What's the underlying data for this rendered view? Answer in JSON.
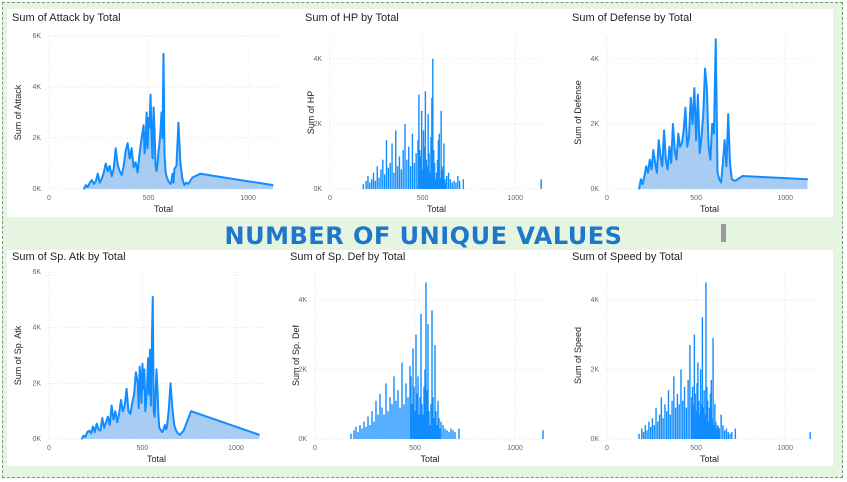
{
  "banner": "NUMBER OF UNIQUE VALUES",
  "colors": {
    "series": "#118dff",
    "area": "#a9cdf2",
    "grid": "#e3e3e3",
    "bg": "#e6f5e2"
  },
  "chart_data": [
    {
      "type": "area",
      "title": "Sum of Attack by Total",
      "xlabel": "Total",
      "ylabel": "Sum of Attack",
      "xlim": [
        0,
        1150
      ],
      "xticks": [
        0,
        500,
        1000
      ],
      "xtick_labels": [
        "0",
        "500",
        "1000"
      ],
      "ylim": [
        0,
        6000
      ],
      "yticks": [
        0,
        2000,
        4000,
        6000
      ],
      "ytick_labels": [
        "0K",
        "2K",
        "4K",
        "6K"
      ],
      "series": [
        {
          "x": [
            175,
            185,
            195,
            205,
            215,
            225,
            235,
            245,
            255,
            265,
            275,
            285,
            295,
            305,
            315,
            325,
            335,
            345,
            355,
            365,
            375,
            385,
            395,
            405,
            415,
            425,
            435,
            445,
            455,
            465,
            475,
            480,
            485,
            490,
            495,
            500,
            505,
            510,
            515,
            520,
            525,
            530,
            535,
            540,
            545,
            550,
            555,
            560,
            565,
            570,
            575,
            580,
            585,
            590,
            595,
            600,
            605,
            610,
            615,
            620,
            625,
            630,
            640,
            650,
            660,
            670,
            680,
            690,
            700,
            720,
            760,
            1125
          ],
          "y": [
            0,
            150,
            80,
            250,
            350,
            200,
            300,
            600,
            250,
            400,
            650,
            1000,
            700,
            900,
            500,
            800,
            1600,
            950,
            700,
            550,
            900,
            1500,
            1800,
            1200,
            1600,
            850,
            1050,
            650,
            1400,
            2000,
            2500,
            1400,
            1800,
            3000,
            1600,
            2800,
            2400,
            3700,
            2000,
            1200,
            3200,
            2300,
            900,
            700,
            1000,
            1500,
            1800,
            2300,
            3000,
            2000,
            5300,
            1400,
            700,
            500,
            400,
            300,
            250,
            200,
            300,
            600,
            250,
            800,
            900,
            2600,
            1000,
            400,
            150,
            250,
            200,
            450,
            600,
            150
          ]
        }
      ]
    },
    {
      "type": "bar",
      "title": "Sum of HP by Total",
      "xlabel": "Total",
      "ylabel": "Sum of HP",
      "xlim": [
        0,
        1150
      ],
      "xticks": [
        0,
        500,
        1000
      ],
      "xtick_labels": [
        "0",
        "500",
        "1000"
      ],
      "ylim": [
        0,
        4700
      ],
      "yticks": [
        0,
        2000,
        4000
      ],
      "ytick_labels": [
        "0K",
        "2K",
        "4K"
      ],
      "series": [
        {
          "x": [
            180,
            195,
            205,
            215,
            225,
            235,
            245,
            255,
            265,
            275,
            285,
            295,
            305,
            315,
            325,
            335,
            345,
            355,
            365,
            375,
            385,
            395,
            405,
            415,
            425,
            435,
            445,
            455,
            465,
            475,
            480,
            485,
            490,
            495,
            500,
            505,
            510,
            515,
            520,
            525,
            530,
            535,
            540,
            545,
            550,
            555,
            560,
            565,
            570,
            575,
            580,
            585,
            590,
            595,
            600,
            605,
            610,
            615,
            620,
            625,
            630,
            640,
            650,
            660,
            670,
            680,
            690,
            700,
            720,
            1140
          ],
          "y": [
            150,
            250,
            400,
            200,
            300,
            500,
            250,
            700,
            350,
            600,
            900,
            450,
            1500,
            650,
            800,
            1400,
            500,
            1800,
            700,
            1000,
            600,
            1200,
            2000,
            900,
            1300,
            700,
            1700,
            800,
            1100,
            1500,
            2900,
            1200,
            1000,
            2400,
            600,
            1800,
            1300,
            3000,
            900,
            700,
            2300,
            1100,
            500,
            1600,
            2800,
            4000,
            1200,
            800,
            300,
            500,
            900,
            1500,
            1700,
            350,
            2400,
            600,
            700,
            1400,
            300,
            200,
            400,
            500,
            300,
            200,
            250,
            200,
            400,
            250,
            300,
            300
          ]
        }
      ]
    },
    {
      "type": "area",
      "title": "Sum of Defense by Total",
      "xlabel": "Total",
      "ylabel": "Sum of Defense",
      "xlim": [
        0,
        1150
      ],
      "xticks": [
        0,
        500,
        1000
      ],
      "xtick_labels": [
        "0",
        "500",
        "1000"
      ],
      "ylim": [
        0,
        4700
      ],
      "yticks": [
        0,
        2000,
        4000
      ],
      "ytick_labels": [
        "0K",
        "2K",
        "4K"
      ],
      "series": [
        {
          "x": [
            180,
            190,
            200,
            210,
            220,
            230,
            240,
            250,
            260,
            270,
            280,
            290,
            300,
            310,
            320,
            330,
            340,
            350,
            360,
            370,
            380,
            390,
            400,
            410,
            420,
            430,
            440,
            450,
            460,
            470,
            480,
            490,
            500,
            510,
            520,
            530,
            540,
            550,
            560,
            570,
            580,
            590,
            600,
            610,
            620,
            630,
            640,
            650,
            660,
            670,
            680,
            690,
            700,
            720,
            760,
            1125
          ],
          "y": [
            0,
            300,
            150,
            400,
            700,
            500,
            900,
            600,
            1200,
            800,
            500,
            1500,
            1000,
            700,
            1800,
            900,
            600,
            1300,
            800,
            2000,
            1200,
            900,
            1700,
            1300,
            1400,
            1800,
            2500,
            1300,
            1600,
            2800,
            2000,
            3100,
            1500,
            2900,
            1100,
            1600,
            2300,
            3700,
            3100,
            1300,
            900,
            2000,
            1700,
            4600,
            500,
            300,
            200,
            800,
            1500,
            700,
            2300,
            800,
            300,
            250,
            400,
            300
          ]
        }
      ]
    },
    {
      "type": "area",
      "title": "Sum of Sp. Atk by Total",
      "xlabel": "Total",
      "ylabel": "Sum of Sp. Atk",
      "xlim": [
        0,
        1150
      ],
      "xticks": [
        0,
        500,
        1000
      ],
      "xtick_labels": [
        "0",
        "500",
        "1000"
      ],
      "ylim": [
        0,
        6000
      ],
      "yticks": [
        0,
        2000,
        4000,
        6000
      ],
      "ytick_labels": [
        "0K",
        "2K",
        "4K",
        "6K"
      ],
      "series": [
        {
          "x": [
            175,
            185,
            195,
            205,
            215,
            225,
            235,
            245,
            255,
            265,
            275,
            285,
            295,
            305,
            315,
            325,
            335,
            345,
            355,
            365,
            375,
            385,
            395,
            405,
            415,
            425,
            435,
            445,
            455,
            465,
            475,
            480,
            485,
            490,
            495,
            500,
            505,
            510,
            515,
            520,
            525,
            530,
            535,
            540,
            545,
            550,
            555,
            560,
            565,
            570,
            575,
            580,
            585,
            590,
            595,
            600,
            605,
            610,
            615,
            620,
            625,
            630,
            640,
            650,
            660,
            670,
            680,
            690,
            700,
            720,
            760,
            1125
          ],
          "y": [
            0,
            120,
            80,
            250,
            300,
            200,
            450,
            250,
            550,
            350,
            300,
            750,
            400,
            600,
            800,
            500,
            1200,
            700,
            1000,
            600,
            900,
            1400,
            1000,
            1200,
            1800,
            1000,
            900,
            1300,
            1600,
            2400,
            2000,
            1100,
            2600,
            2200,
            1300,
            2700,
            1800,
            2500,
            1000,
            1400,
            2000,
            2900,
            1600,
            3200,
            1200,
            3400,
            5100,
            1000,
            800,
            1600,
            2500,
            1800,
            900,
            400,
            350,
            300,
            250,
            300,
            400,
            500,
            350,
            400,
            1000,
            2000,
            1100,
            500,
            300,
            200,
            150,
            300,
            1000,
            150
          ]
        }
      ]
    },
    {
      "type": "bar",
      "title": "Sum of Sp. Def by Total",
      "xlabel": "Total",
      "ylabel": "Sum of Sp. Def",
      "xlim": [
        0,
        1150
      ],
      "xticks": [
        0,
        500,
        1000
      ],
      "xtick_labels": [
        "0",
        "500",
        "1000"
      ],
      "ylim": [
        0,
        4800
      ],
      "yticks": [
        0,
        2000,
        4000
      ],
      "ytick_labels": [
        "0K",
        "2K",
        "4K"
      ],
      "series": [
        {
          "x": [
            180,
            195,
            205,
            215,
            225,
            235,
            245,
            255,
            265,
            275,
            285,
            295,
            305,
            315,
            325,
            335,
            345,
            355,
            365,
            375,
            385,
            395,
            405,
            415,
            425,
            435,
            445,
            455,
            465,
            475,
            480,
            485,
            490,
            495,
            500,
            505,
            510,
            515,
            520,
            525,
            530,
            535,
            540,
            545,
            550,
            555,
            560,
            565,
            570,
            575,
            580,
            585,
            590,
            595,
            600,
            605,
            610,
            615,
            620,
            625,
            630,
            640,
            650,
            660,
            670,
            680,
            690,
            700,
            720,
            1140
          ],
          "y": [
            150,
            250,
            350,
            200,
            400,
            300,
            500,
            350,
            650,
            400,
            800,
            500,
            1100,
            700,
            1300,
            900,
            700,
            1600,
            800,
            1200,
            1000,
            1800,
            1100,
            1400,
            900,
            2200,
            1000,
            1600,
            1200,
            2100,
            1800,
            1000,
            2600,
            1500,
            800,
            3000,
            1300,
            1800,
            700,
            1200,
            3600,
            1000,
            700,
            1500,
            2000,
            4500,
            1400,
            3300,
            800,
            400,
            1000,
            3700,
            1200,
            600,
            2700,
            800,
            400,
            1100,
            600,
            300,
            500,
            400,
            300,
            250,
            200,
            300,
            250,
            200,
            300,
            250
          ]
        }
      ]
    },
    {
      "type": "bar",
      "title": "Sum of Speed by Total",
      "xlabel": "Total",
      "ylabel": "Sum of Speed",
      "xlim": [
        0,
        1150
      ],
      "xticks": [
        0,
        500,
        1000
      ],
      "xtick_labels": [
        "0",
        "500",
        "1000"
      ],
      "ylim": [
        0,
        4800
      ],
      "yticks": [
        0,
        2000,
        4000
      ],
      "ytick_labels": [
        "0K",
        "2K",
        "4K"
      ],
      "series": [
        {
          "x": [
            180,
            195,
            205,
            215,
            225,
            235,
            245,
            255,
            265,
            275,
            285,
            295,
            305,
            315,
            325,
            335,
            345,
            355,
            365,
            375,
            385,
            395,
            405,
            415,
            425,
            435,
            445,
            455,
            465,
            475,
            480,
            485,
            490,
            495,
            500,
            505,
            510,
            515,
            520,
            525,
            530,
            535,
            540,
            545,
            550,
            555,
            560,
            565,
            570,
            575,
            580,
            585,
            590,
            595,
            600,
            605,
            610,
            615,
            620,
            625,
            630,
            640,
            650,
            660,
            670,
            680,
            690,
            700,
            720,
            1140
          ],
          "y": [
            150,
            300,
            200,
            400,
            250,
            500,
            350,
            600,
            400,
            900,
            500,
            700,
            1200,
            600,
            1000,
            800,
            1400,
            700,
            1100,
            1800,
            900,
            1300,
            1000,
            2000,
            1100,
            1500,
            900,
            1700,
            2700,
            1200,
            1500,
            1000,
            3000,
            1300,
            800,
            1600,
            2200,
            1100,
            700,
            2000,
            1000,
            3500,
            900,
            1400,
            700,
            4500,
            1500,
            1100,
            500,
            900,
            1300,
            1700,
            600,
            2900,
            400,
            1000,
            500,
            300,
            400,
            350,
            300,
            700,
            400,
            250,
            300,
            200,
            150,
            200,
            300,
            200
          ]
        }
      ]
    }
  ]
}
